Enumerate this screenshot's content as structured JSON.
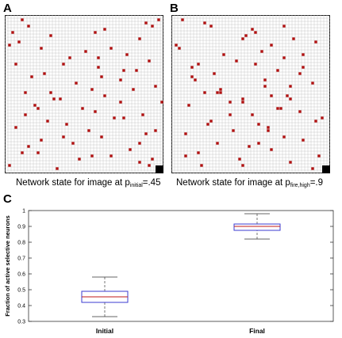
{
  "panels": [
    {
      "letter": "A",
      "caption_prefix": "Network state for image at p",
      "caption_sub": "initial",
      "caption_suffix": "=.45",
      "grid_size": 50,
      "active_color": "#b21010",
      "cells": [
        [
          1,
          5
        ],
        [
          3,
          7
        ],
        [
          5,
          2
        ],
        [
          6,
          14
        ],
        [
          4,
          31
        ],
        [
          2,
          44
        ],
        [
          3,
          46
        ],
        [
          1,
          48
        ],
        [
          8,
          4
        ],
        [
          9,
          1
        ],
        [
          11,
          25
        ],
        [
          10,
          33
        ],
        [
          12,
          38
        ],
        [
          13,
          20
        ],
        [
          14,
          45
        ],
        [
          15,
          3
        ],
        [
          16,
          29
        ],
        [
          17,
          41
        ],
        [
          18,
          12
        ],
        [
          19,
          8
        ],
        [
          20,
          36
        ],
        [
          21,
          22
        ],
        [
          22,
          47
        ],
        [
          23,
          27
        ],
        [
          24,
          6
        ],
        [
          25,
          31
        ],
        [
          26,
          15
        ],
        [
          27,
          49
        ],
        [
          28,
          9
        ],
        [
          29,
          24
        ],
        [
          30,
          28
        ],
        [
          31,
          43
        ],
        [
          32,
          37
        ],
        [
          33,
          13
        ],
        [
          34,
          19
        ],
        [
          35,
          3
        ],
        [
          36,
          26
        ],
        [
          37,
          44
        ],
        [
          38,
          30
        ],
        [
          39,
          11
        ],
        [
          40,
          21
        ],
        [
          41,
          7
        ],
        [
          42,
          39
        ],
        [
          43,
          5
        ],
        [
          44,
          33
        ],
        [
          45,
          23
        ],
        [
          46,
          42
        ],
        [
          47,
          1
        ],
        [
          48,
          16
        ],
        [
          45,
          46
        ],
        [
          47,
          45
        ],
        [
          32,
          34
        ],
        [
          29,
          10
        ],
        [
          26,
          17
        ],
        [
          27,
          36
        ],
        [
          23,
          40
        ],
        [
          19,
          30
        ],
        [
          15,
          18
        ],
        [
          13,
          29
        ],
        [
          10,
          11
        ],
        [
          7,
          42
        ],
        [
          5,
          28
        ],
        [
          31,
          6
        ],
        [
          36,
          47
        ],
        [
          40,
          42
        ],
        [
          43,
          10
        ],
        [
          24,
          14
        ],
        [
          17,
          37
        ],
        [
          38,
          18
        ],
        [
          44,
          27
        ]
      ]
    },
    {
      "letter": "B",
      "caption_prefix": "Network state for image at p",
      "caption_sub": "fire,high",
      "caption_suffix": "=.9",
      "grid_size": 50,
      "active_color": "#b21010",
      "cells": [
        [
          1,
          3
        ],
        [
          2,
          10
        ],
        [
          3,
          12
        ],
        [
          4,
          25
        ],
        [
          5,
          26
        ],
        [
          6,
          23
        ],
        [
          7,
          38
        ],
        [
          8,
          45
        ],
        [
          9,
          1
        ],
        [
          10,
          2
        ],
        [
          11,
          28
        ],
        [
          12,
          16
        ],
        [
          13,
          35
        ],
        [
          14,
          20
        ],
        [
          15,
          8
        ],
        [
          16,
          41
        ],
        [
          17,
          33
        ],
        [
          18,
          13
        ],
        [
          19,
          6
        ],
        [
          20,
          29
        ],
        [
          21,
          44
        ],
        [
          22,
          37
        ],
        [
          23,
          15
        ],
        [
          24,
          10
        ],
        [
          25,
          31
        ],
        [
          26,
          22
        ],
        [
          27,
          18
        ],
        [
          28,
          5
        ],
        [
          29,
          34
        ],
        [
          30,
          40
        ],
        [
          31,
          25
        ],
        [
          32,
          47
        ],
        [
          33,
          12
        ],
        [
          34,
          27
        ],
        [
          35,
          30
        ],
        [
          36,
          19
        ],
        [
          37,
          4
        ],
        [
          38,
          35
        ],
        [
          39,
          41
        ],
        [
          40,
          27
        ],
        [
          41,
          24
        ],
        [
          42,
          31
        ],
        [
          43,
          8
        ],
        [
          44,
          46
        ],
        [
          45,
          21
        ],
        [
          46,
          37
        ],
        [
          47,
          9
        ],
        [
          48,
          44
        ],
        [
          24,
          14
        ],
        [
          24,
          15
        ],
        [
          27,
          22
        ],
        [
          29,
          33
        ],
        [
          25,
          36
        ],
        [
          26,
          37
        ],
        [
          31,
          18
        ],
        [
          36,
          30
        ],
        [
          12,
          41
        ],
        [
          15,
          26
        ],
        [
          22,
          29
        ],
        [
          34,
          11
        ],
        [
          40,
          14
        ],
        [
          18,
          40
        ],
        [
          7,
          22
        ],
        [
          3,
          35
        ],
        [
          44,
          4
        ],
        [
          47,
          22
        ],
        [
          20,
          7
        ],
        [
          33,
          45
        ],
        [
          16,
          6
        ],
        [
          9,
          31
        ]
      ]
    }
  ],
  "chart_data": {
    "letter": "C",
    "type": "box",
    "categories": [
      "Initial",
      "Final"
    ],
    "boxes": [
      {
        "whisker_low": 0.33,
        "q1": 0.42,
        "median": 0.455,
        "q3": 0.49,
        "whisker_high": 0.58
      },
      {
        "whisker_low": 0.82,
        "q1": 0.875,
        "median": 0.9,
        "q3": 0.915,
        "whisker_high": 0.98
      }
    ],
    "ylabel": "Fraction of active selective neurons",
    "ylim": [
      0.3,
      1.0
    ],
    "yticks": [
      "0.3",
      "0.4",
      "0.5",
      "0.6",
      "0.7",
      "0.8",
      "0.9",
      "1"
    ],
    "box_color": "#3b3bd1",
    "median_color": "#c01a1a"
  }
}
